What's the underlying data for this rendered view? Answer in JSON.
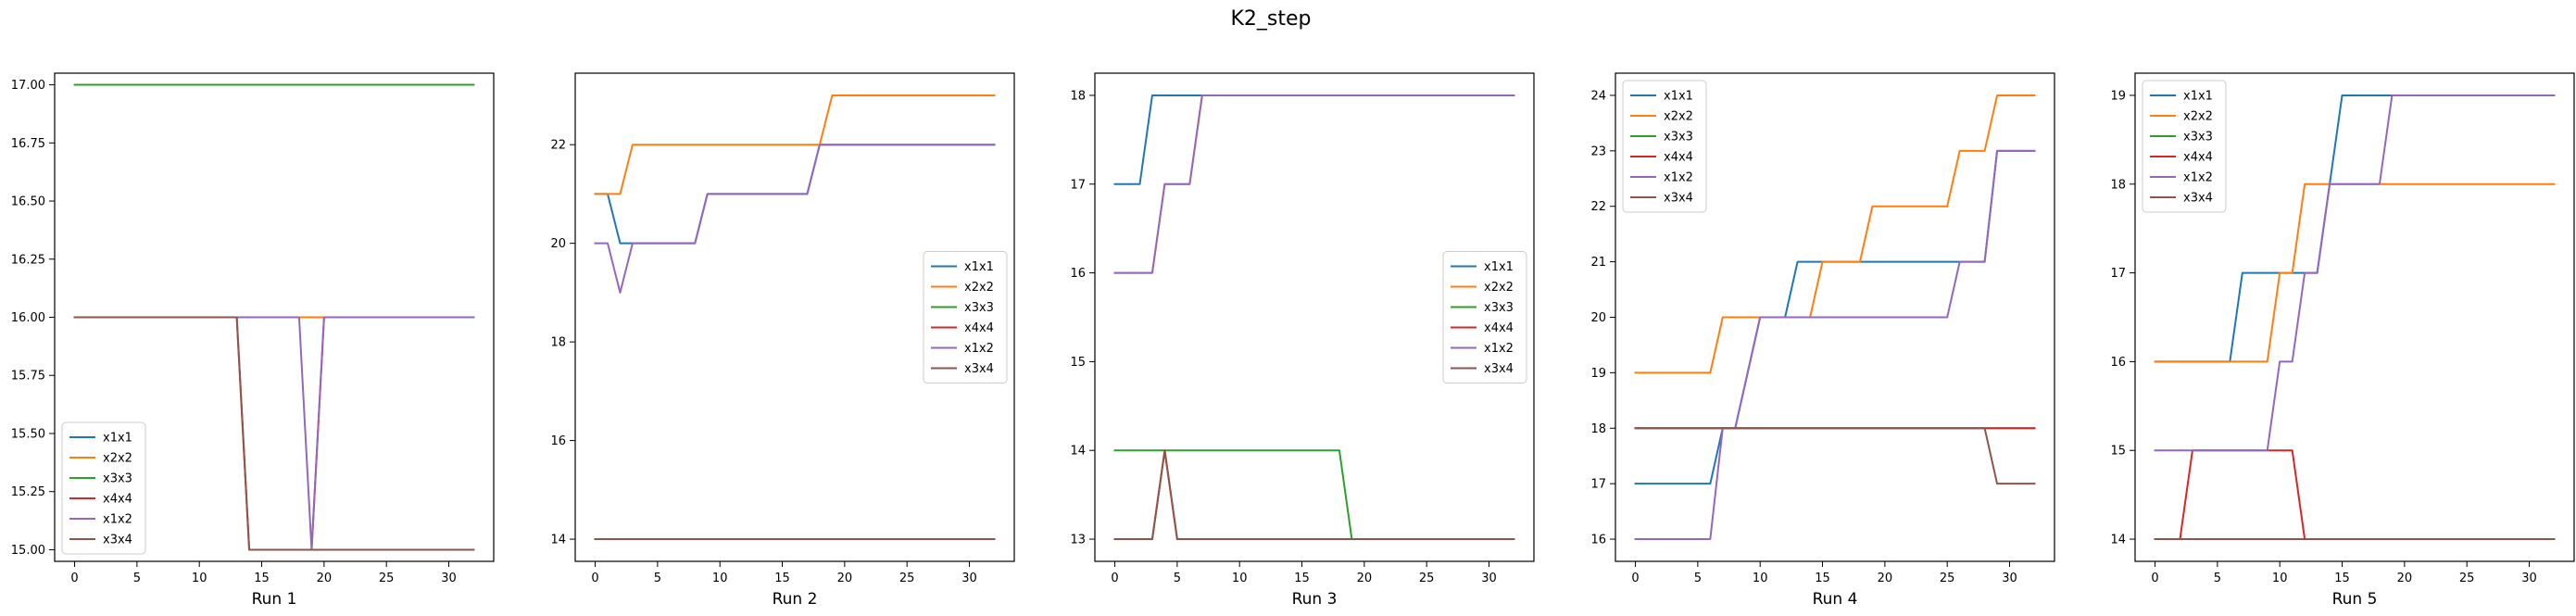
{
  "figure": {
    "title": "K2_step"
  },
  "series_colors": {
    "x1x1": "#1f77b4",
    "x2x2": "#ff7f0e",
    "x3x3": "#2ca02c",
    "x4x4": "#d62728",
    "x1x2": "#9467bd",
    "x3x4": "#8c564b"
  },
  "chart_data": [
    {
      "type": "line",
      "xlabel": "Run 1",
      "xlim": [
        -1.6,
        33.6
      ],
      "ylim": [
        14.95,
        17.05
      ],
      "xticks": [
        0,
        5,
        10,
        15,
        20,
        25,
        30
      ],
      "yticks": [
        "15.00",
        "15.25",
        "15.50",
        "15.75",
        "16.00",
        "16.25",
        "16.50",
        "16.75",
        "17.00"
      ],
      "legend_position": "lower-left",
      "series": [
        {
          "name": "x1x1",
          "points": [
            [
              0,
              16
            ],
            [
              32,
              16
            ]
          ]
        },
        {
          "name": "x2x2",
          "points": [
            [
              0,
              16
            ],
            [
              32,
              16
            ]
          ]
        },
        {
          "name": "x3x3",
          "points": [
            [
              0,
              17
            ],
            [
              32,
              17
            ]
          ]
        },
        {
          "name": "x4x4",
          "points": [
            [
              0,
              16
            ],
            [
              13,
              16
            ],
            [
              14,
              15
            ],
            [
              19,
              15
            ],
            [
              20,
              16
            ],
            [
              32,
              16
            ]
          ]
        },
        {
          "name": "x1x2",
          "points": [
            [
              0,
              16
            ],
            [
              18,
              16
            ],
            [
              19,
              15
            ],
            [
              20,
              16
            ],
            [
              32,
              16
            ]
          ]
        },
        {
          "name": "x3x4",
          "points": [
            [
              0,
              16
            ],
            [
              13,
              16
            ],
            [
              14,
              15
            ],
            [
              32,
              15
            ]
          ]
        }
      ]
    },
    {
      "type": "line",
      "xlabel": "Run 2",
      "xlim": [
        -1.6,
        33.6
      ],
      "ylim": [
        13.55,
        23.45
      ],
      "xticks": [
        0,
        5,
        10,
        15,
        20,
        25,
        30
      ],
      "yticks": [
        "14",
        "16",
        "18",
        "20",
        "22"
      ],
      "legend_position": "center-right",
      "series": [
        {
          "name": "x1x1",
          "points": [
            [
              0,
              21
            ],
            [
              1,
              21
            ],
            [
              2,
              20
            ],
            [
              8,
              20
            ],
            [
              9,
              21
            ],
            [
              17,
              21
            ],
            [
              18,
              22
            ],
            [
              32,
              22
            ]
          ]
        },
        {
          "name": "x2x2",
          "points": [
            [
              0,
              21
            ],
            [
              2,
              21
            ],
            [
              3,
              22
            ],
            [
              18,
              22
            ],
            [
              19,
              23
            ],
            [
              32,
              23
            ]
          ]
        },
        {
          "name": "x3x3",
          "points": [
            [
              0,
              14
            ],
            [
              32,
              14
            ]
          ]
        },
        {
          "name": "x4x4",
          "points": [
            [
              0,
              14
            ],
            [
              32,
              14
            ]
          ]
        },
        {
          "name": "x1x2",
          "points": [
            [
              0,
              20
            ],
            [
              1,
              20
            ],
            [
              2,
              19
            ],
            [
              3,
              20
            ],
            [
              8,
              20
            ],
            [
              9,
              21
            ],
            [
              17,
              21
            ],
            [
              18,
              22
            ],
            [
              32,
              22
            ]
          ]
        },
        {
          "name": "x3x4",
          "points": [
            [
              0,
              14
            ],
            [
              32,
              14
            ]
          ]
        }
      ]
    },
    {
      "type": "line",
      "xlabel": "Run 3",
      "xlim": [
        -1.6,
        33.6
      ],
      "ylim": [
        12.75,
        18.25
      ],
      "xticks": [
        0,
        5,
        10,
        15,
        20,
        25,
        30
      ],
      "yticks": [
        "13",
        "14",
        "15",
        "16",
        "17",
        "18"
      ],
      "legend_position": "center-right",
      "series": [
        {
          "name": "x1x1",
          "points": [
            [
              0,
              17
            ],
            [
              2,
              17
            ],
            [
              3,
              18
            ],
            [
              32,
              18
            ]
          ]
        },
        {
          "name": "x2x2",
          "points": [
            [
              0,
              16
            ],
            [
              3,
              16
            ],
            [
              4,
              17
            ],
            [
              6,
              17
            ],
            [
              7,
              18
            ],
            [
              32,
              18
            ]
          ]
        },
        {
          "name": "x3x3",
          "points": [
            [
              0,
              14
            ],
            [
              18,
              14
            ],
            [
              19,
              13
            ],
            [
              32,
              13
            ]
          ]
        },
        {
          "name": "x4x4",
          "points": [
            [
              0,
              13
            ],
            [
              3,
              13
            ],
            [
              4,
              14
            ],
            [
              5,
              13
            ],
            [
              32,
              13
            ]
          ]
        },
        {
          "name": "x1x2",
          "points": [
            [
              0,
              16
            ],
            [
              3,
              16
            ],
            [
              4,
              17
            ],
            [
              6,
              17
            ],
            [
              7,
              18
            ],
            [
              32,
              18
            ]
          ]
        },
        {
          "name": "x3x4",
          "points": [
            [
              0,
              13
            ],
            [
              3,
              13
            ],
            [
              4,
              14
            ],
            [
              5,
              13
            ],
            [
              32,
              13
            ]
          ]
        }
      ]
    },
    {
      "type": "line",
      "xlabel": "Run 4",
      "xlim": [
        -1.6,
        33.6
      ],
      "ylim": [
        15.6,
        24.4
      ],
      "xticks": [
        0,
        5,
        10,
        15,
        20,
        25,
        30
      ],
      "yticks": [
        "16",
        "17",
        "18",
        "19",
        "20",
        "21",
        "22",
        "23",
        "24"
      ],
      "legend_position": "upper-left",
      "series": [
        {
          "name": "x1x1",
          "points": [
            [
              0,
              17
            ],
            [
              6,
              17
            ],
            [
              7,
              18
            ],
            [
              8,
              18
            ],
            [
              10,
              20
            ],
            [
              12,
              20
            ],
            [
              13,
              21
            ],
            [
              28,
              21
            ],
            [
              29,
              23
            ],
            [
              32,
              23
            ]
          ]
        },
        {
          "name": "x2x2",
          "points": [
            [
              0,
              19
            ],
            [
              6,
              19
            ],
            [
              7,
              20
            ],
            [
              10,
              20
            ],
            [
              11,
              20
            ],
            [
              14,
              20
            ],
            [
              15,
              21
            ],
            [
              18,
              21
            ],
            [
              19,
              22
            ],
            [
              25,
              22
            ],
            [
              26,
              23
            ],
            [
              28,
              23
            ],
            [
              29,
              24
            ],
            [
              32,
              24
            ]
          ]
        },
        {
          "name": "x3x3",
          "points": [
            [
              0,
              18
            ],
            [
              32,
              18
            ]
          ]
        },
        {
          "name": "x4x4",
          "points": [
            [
              0,
              18
            ],
            [
              32,
              18
            ]
          ]
        },
        {
          "name": "x1x2",
          "points": [
            [
              0,
              16
            ],
            [
              6,
              16
            ],
            [
              7,
              18
            ],
            [
              8,
              18
            ],
            [
              10,
              20
            ],
            [
              25,
              20
            ],
            [
              26,
              21
            ],
            [
              28,
              21
            ],
            [
              29,
              23
            ],
            [
              32,
              23
            ]
          ]
        },
        {
          "name": "x3x4",
          "points": [
            [
              0,
              18
            ],
            [
              28,
              18
            ],
            [
              29,
              17
            ],
            [
              32,
              17
            ]
          ]
        }
      ]
    },
    {
      "type": "line",
      "xlabel": "Run 5",
      "xlim": [
        -1.6,
        33.6
      ],
      "ylim": [
        13.75,
        19.25
      ],
      "xticks": [
        0,
        5,
        10,
        15,
        20,
        25,
        30
      ],
      "yticks": [
        "14",
        "15",
        "16",
        "17",
        "18",
        "19"
      ],
      "legend_position": "upper-left",
      "series": [
        {
          "name": "x1x1",
          "points": [
            [
              0,
              16
            ],
            [
              6,
              16
            ],
            [
              7,
              17
            ],
            [
              11,
              17
            ],
            [
              13,
              17
            ],
            [
              15,
              19
            ],
            [
              32,
              19
            ]
          ]
        },
        {
          "name": "x2x2",
          "points": [
            [
              0,
              16
            ],
            [
              9,
              16
            ],
            [
              10,
              17
            ],
            [
              11,
              17
            ],
            [
              12,
              18
            ],
            [
              32,
              18
            ]
          ]
        },
        {
          "name": "x3x3",
          "points": [
            [
              0,
              14
            ],
            [
              32,
              14
            ]
          ]
        },
        {
          "name": "x4x4",
          "points": [
            [
              0,
              14
            ],
            [
              2,
              14
            ],
            [
              3,
              15
            ],
            [
              11,
              15
            ],
            [
              12,
              14
            ],
            [
              32,
              14
            ]
          ]
        },
        {
          "name": "x1x2",
          "points": [
            [
              0,
              15
            ],
            [
              9,
              15
            ],
            [
              10,
              16
            ],
            [
              11,
              16
            ],
            [
              12,
              17
            ],
            [
              13,
              17
            ],
            [
              14,
              18
            ],
            [
              18,
              18
            ],
            [
              19,
              19
            ],
            [
              32,
              19
            ]
          ]
        },
        {
          "name": "x3x4",
          "points": [
            [
              0,
              14
            ],
            [
              32,
              14
            ]
          ]
        }
      ]
    }
  ]
}
